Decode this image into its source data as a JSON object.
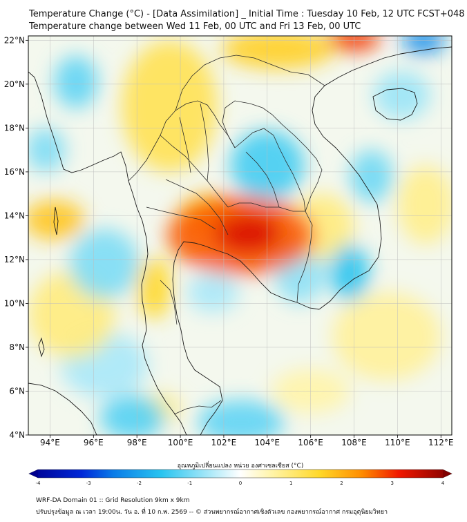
{
  "title": {
    "line1": "Temperature Change (°C) - [Data Assimilation] _ Initial Time : Tuesday 10 Feb, 12 UTC FCST+048",
    "line2": "Temperature change between Wed 11 Feb, 00 UTC and Fri 13 Feb, 00 UTC"
  },
  "map": {
    "lon_range": [
      93,
      112.5
    ],
    "lat_range": [
      4,
      22.2
    ],
    "lon_ticks": [
      {
        "value": 94,
        "label": "94°E"
      },
      {
        "value": 96,
        "label": "96°E"
      },
      {
        "value": 98,
        "label": "98°E"
      },
      {
        "value": 100,
        "label": "100°E"
      },
      {
        "value": 102,
        "label": "102°E"
      },
      {
        "value": 104,
        "label": "104°E"
      },
      {
        "value": 106,
        "label": "106°E"
      },
      {
        "value": 108,
        "label": "108°E"
      },
      {
        "value": 110,
        "label": "110°E"
      },
      {
        "value": 112,
        "label": "112°E"
      }
    ],
    "lat_ticks": [
      {
        "value": 4,
        "label": "4°N"
      },
      {
        "value": 6,
        "label": "6°N"
      },
      {
        "value": 8,
        "label": "8°N"
      },
      {
        "value": 10,
        "label": "10°N"
      },
      {
        "value": 12,
        "label": "12°N"
      },
      {
        "value": 14,
        "label": "14°N"
      },
      {
        "value": 16,
        "label": "16°N"
      },
      {
        "value": 18,
        "label": "18°N"
      },
      {
        "value": 20,
        "label": "20°N"
      },
      {
        "value": 22,
        "label": "22°N"
      }
    ],
    "field_blobs": [
      {
        "lon": 102.8,
        "lat": 13.1,
        "rx": 3.4,
        "ry": 1.8,
        "value": 2.6
      },
      {
        "lon": 103.1,
        "lat": 13.2,
        "rx": 1.5,
        "ry": 0.9,
        "value": 3.2
      },
      {
        "lon": 101.5,
        "lat": 14.0,
        "rx": 1.6,
        "ry": 1.0,
        "value": 1.8
      },
      {
        "lon": 108.0,
        "lat": 22.1,
        "rx": 1.2,
        "ry": 0.6,
        "value": 2.8
      },
      {
        "lon": 104.5,
        "lat": 21.6,
        "rx": 2.6,
        "ry": 0.9,
        "value": 1.6
      },
      {
        "lon": 94.2,
        "lat": 13.8,
        "rx": 1.4,
        "ry": 0.9,
        "value": 1.7
      },
      {
        "lon": 99.5,
        "lat": 19.0,
        "rx": 2.2,
        "ry": 3.0,
        "value": 1.2
      },
      {
        "lon": 98.8,
        "lat": 10.7,
        "rx": 0.8,
        "ry": 1.4,
        "value": 1.5
      },
      {
        "lon": 95.0,
        "lat": 9.5,
        "rx": 2.0,
        "ry": 2.0,
        "value": 0.9
      },
      {
        "lon": 106.5,
        "lat": 13.5,
        "rx": 1.5,
        "ry": 1.5,
        "value": 0.9
      },
      {
        "lon": 109.5,
        "lat": 8.5,
        "rx": 2.5,
        "ry": 2.0,
        "value": 0.7
      },
      {
        "lon": 111.3,
        "lat": 14.5,
        "rx": 1.3,
        "ry": 1.8,
        "value": 0.8
      },
      {
        "lon": 99.0,
        "lat": 5.2,
        "rx": 1.0,
        "ry": 0.7,
        "value": 0.9
      },
      {
        "lon": 106.0,
        "lat": 6.0,
        "rx": 1.8,
        "ry": 1.0,
        "value": 0.6
      },
      {
        "lon": 104.0,
        "lat": 16.3,
        "rx": 1.7,
        "ry": 1.6,
        "value": -1.3
      },
      {
        "lon": 105.5,
        "lat": 11.5,
        "rx": 1.2,
        "ry": 1.5,
        "value": -0.8
      },
      {
        "lon": 107.8,
        "lat": 11.4,
        "rx": 0.9,
        "ry": 1.3,
        "value": -1.5
      },
      {
        "lon": 108.8,
        "lat": 15.8,
        "rx": 1.0,
        "ry": 1.2,
        "value": -1.0
      },
      {
        "lon": 101.5,
        "lat": 10.5,
        "rx": 1.2,
        "ry": 0.9,
        "value": -0.6
      },
      {
        "lon": 96.5,
        "lat": 11.8,
        "rx": 1.6,
        "ry": 1.6,
        "value": -0.9
      },
      {
        "lon": 95.2,
        "lat": 20.1,
        "rx": 1.0,
        "ry": 1.2,
        "value": -1.1
      },
      {
        "lon": 111.2,
        "lat": 22.0,
        "rx": 1.0,
        "ry": 0.6,
        "value": -2.2
      },
      {
        "lon": 97.8,
        "lat": 4.8,
        "rx": 1.5,
        "ry": 1.0,
        "value": -1.2
      },
      {
        "lon": 102.8,
        "lat": 4.6,
        "rx": 2.0,
        "ry": 1.0,
        "value": -1.1
      },
      {
        "lon": 93.8,
        "lat": 17.0,
        "rx": 0.9,
        "ry": 1.0,
        "value": -0.9
      },
      {
        "lon": 110.2,
        "lat": 19.5,
        "rx": 1.3,
        "ry": 1.1,
        "value": -0.7
      },
      {
        "lon": 96.5,
        "lat": 7.2,
        "rx": 2.0,
        "ry": 1.5,
        "value": -0.6
      }
    ]
  },
  "colorbar": {
    "title": "อุณหภูมิเปลี่ยนแปลง หน่วย องศาเซลเซียส (°C)",
    "min": -4,
    "max": 4,
    "ticks": [
      {
        "value": -4,
        "label": "-4"
      },
      {
        "value": -3,
        "label": "-3"
      },
      {
        "value": -2,
        "label": "-2"
      },
      {
        "value": -1,
        "label": "-1"
      },
      {
        "value": 0,
        "label": "0"
      },
      {
        "value": 1,
        "label": "1"
      },
      {
        "value": 2,
        "label": "2"
      },
      {
        "value": 3,
        "label": "3"
      },
      {
        "value": 4,
        "label": "4"
      }
    ],
    "stops": [
      {
        "value": -4,
        "color": "#00008f"
      },
      {
        "value": -3,
        "color": "#0028d8"
      },
      {
        "value": -2.4,
        "color": "#0a7ce8"
      },
      {
        "value": -1.5,
        "color": "#28c4f0"
      },
      {
        "value": -0.6,
        "color": "#a8e8f8"
      },
      {
        "value": 0,
        "color": "#ffffff"
      },
      {
        "value": 0.6,
        "color": "#fff4a8"
      },
      {
        "value": 1.5,
        "color": "#ffd828"
      },
      {
        "value": 2.3,
        "color": "#ff8c00"
      },
      {
        "value": 3,
        "color": "#f01800"
      },
      {
        "value": 4,
        "color": "#800000"
      }
    ]
  },
  "footer": {
    "line1": "WRF-DA Domain 01 :: Grid Resolution 9km x 9km",
    "line2": "ปรับปรุงข้อมูล ณ เวลา 19:00น. วัน อ. ที่ 10 ก.พ. 2569 -- © ส่วนพยากรณ์อากาศเชิงตัวเลข กองพยากรณ์อากาศ กรมอุตุนิยมวิทยา"
  },
  "colors": {
    "coast": "#1a1a1a",
    "border": "#2a2a2a",
    "grid": "#bdbdbd",
    "frame": "#000000"
  }
}
